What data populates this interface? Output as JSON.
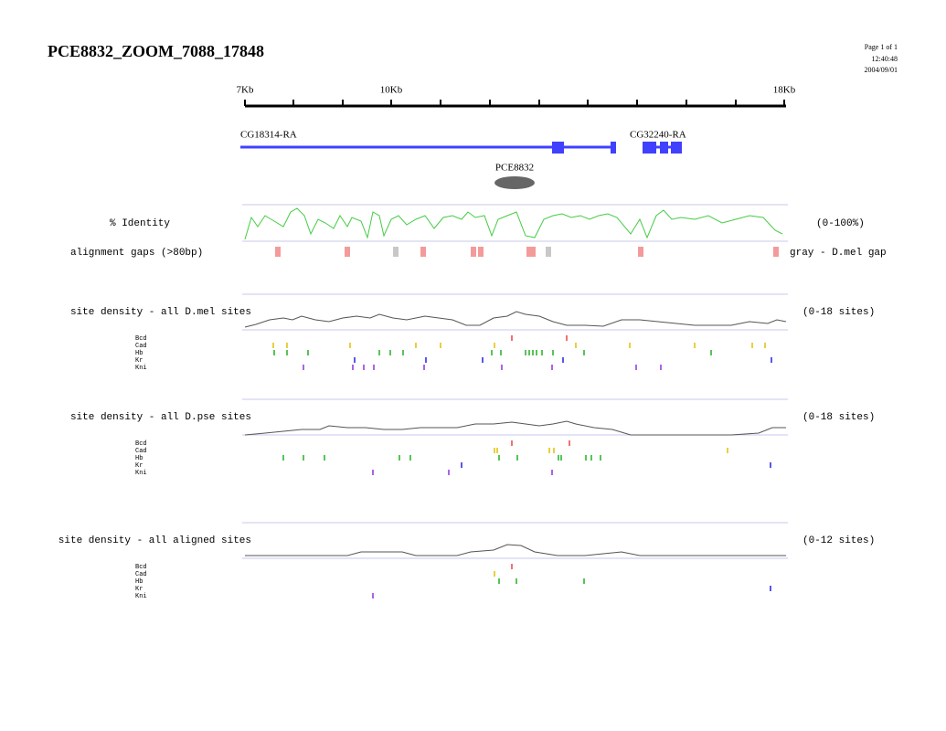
{
  "header": {
    "title": "PCE8832_ZOOM_7088_17848",
    "page": "Page 1 of 1",
    "time": "12:40:48",
    "date": "2004/09/01"
  },
  "ruler": {
    "labels": [
      "7Kb",
      "10Kb",
      "18Kb"
    ]
  },
  "genes": [
    "CG18314-RA",
    "CG32240-RA"
  ],
  "element": "PCE8832",
  "tracks": {
    "identity": {
      "label": "% Identity",
      "range": "(0-100%)"
    },
    "gaps": {
      "label": "alignment gaps (>80bp)",
      "note": "gray - D.mel gap"
    }
  },
  "sections": [
    {
      "label": "site density - all D.mel sites",
      "range": "(0-18 sites)",
      "factors": [
        "Bcd",
        "Cad",
        "Hb",
        "Kr",
        "Kni"
      ]
    },
    {
      "label": "site density - all D.pse sites",
      "range": "(0-18 sites)",
      "factors": [
        "Bcd",
        "Cad",
        "Hb",
        "Kr",
        "Kni"
      ]
    },
    {
      "label": "site density - all aligned sites",
      "range": "(0-12 sites)",
      "factors": [
        "Bcd",
        "Cad",
        "Hb",
        "Kr",
        "Kni"
      ]
    }
  ]
}
